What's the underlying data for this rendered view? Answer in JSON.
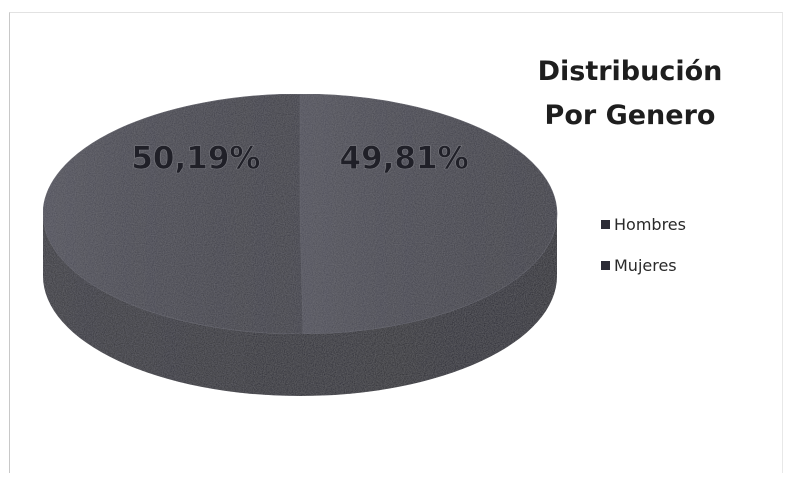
{
  "chart_data": {
    "type": "pie",
    "style": "3d",
    "title_lines": [
      "Distribución",
      "Por Genero"
    ],
    "categories": [
      "Hombres",
      "Mujeres"
    ],
    "values": [
      49.81,
      50.19
    ],
    "data_labels": [
      "49,81%",
      "50,19%"
    ],
    "legend_position": "right",
    "colors": {
      "top": "#40404a",
      "side": "#26262e",
      "swatch": "#2b2b35"
    }
  }
}
